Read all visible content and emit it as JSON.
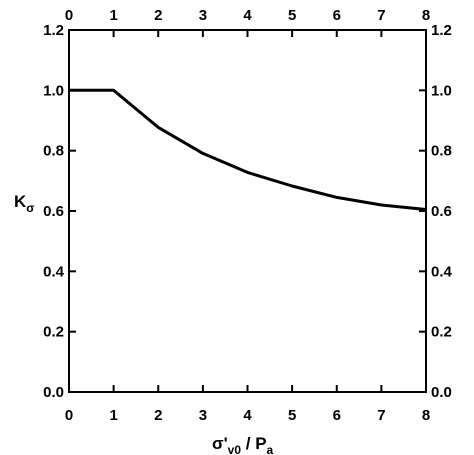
{
  "chart_data": {
    "type": "line",
    "title": "",
    "x_label": {
      "main": "σ'",
      "sub": "v0",
      "rest": " / P",
      "sub2": "a"
    },
    "y_label": {
      "main": "K",
      "sub": "σ"
    },
    "xlim": [
      0,
      8
    ],
    "ylim": [
      0.0,
      1.2
    ],
    "x_ticks": [
      "0",
      "1",
      "2",
      "3",
      "4",
      "5",
      "6",
      "7",
      "8"
    ],
    "y_ticks": [
      "0.0",
      "0.2",
      "0.4",
      "0.6",
      "0.8",
      "1.0",
      "1.2"
    ],
    "grid": false,
    "ticks_on_all_sides": true,
    "series": [
      {
        "color": "#000000",
        "x": [
          0,
          1,
          2,
          3,
          4,
          5,
          6,
          7,
          8
        ],
        "y": [
          1.0,
          1.0,
          0.877,
          0.791,
          0.728,
          0.683,
          0.645,
          0.62,
          0.605
        ]
      }
    ]
  }
}
